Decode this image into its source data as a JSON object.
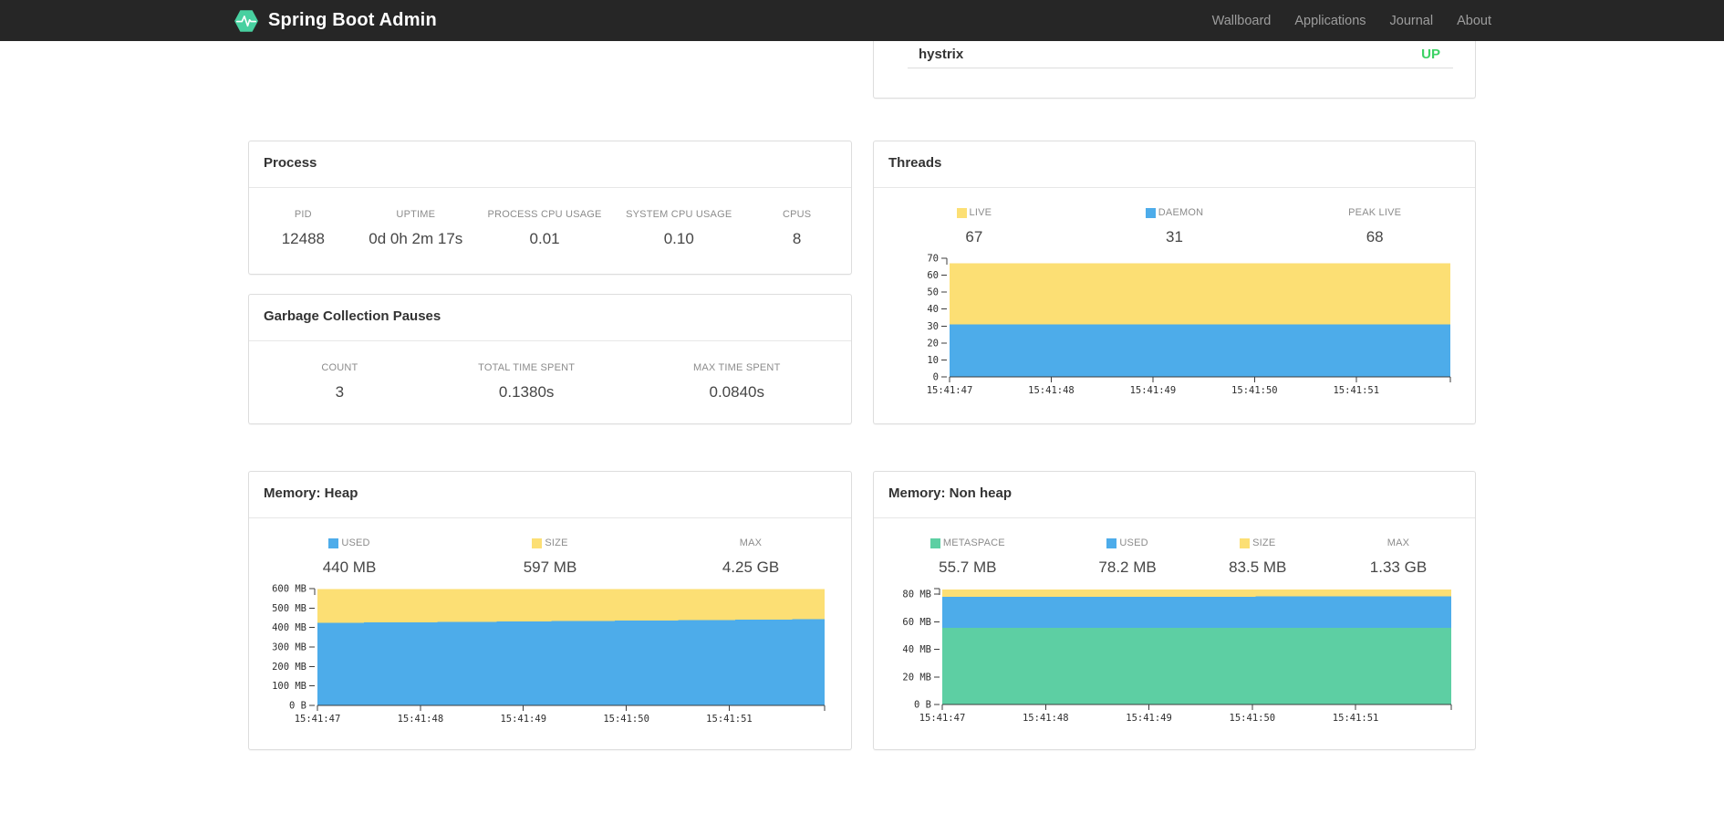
{
  "navbar": {
    "brand": "Spring Boot Admin",
    "logo_color": "#48d0a0",
    "links": [
      {
        "label": "Wallboard"
      },
      {
        "label": "Applications"
      },
      {
        "label": "Journal"
      },
      {
        "label": "About"
      }
    ]
  },
  "applications": {
    "rows": [
      {
        "name": "hystrix",
        "status": "UP",
        "status_color": "#3cd264"
      }
    ]
  },
  "process": {
    "title": "Process",
    "metrics": [
      {
        "label": "PID",
        "value": "12488"
      },
      {
        "label": "UPTIME",
        "value": "0d 0h 2m 17s"
      },
      {
        "label": "PROCESS CPU USAGE",
        "value": "0.01"
      },
      {
        "label": "SYSTEM CPU USAGE",
        "value": "0.10"
      },
      {
        "label": "CPUS",
        "value": "8"
      }
    ]
  },
  "gc": {
    "title": "Garbage Collection Pauses",
    "metrics": [
      {
        "label": "COUNT",
        "value": "3"
      },
      {
        "label": "TOTAL TIME SPENT",
        "value": "0.1380s"
      },
      {
        "label": "MAX TIME SPENT",
        "value": "0.0840s"
      }
    ]
  },
  "threads": {
    "title": "Threads",
    "metrics": [
      {
        "label": "LIVE",
        "value": "67",
        "color": "#fcdf74"
      },
      {
        "label": "DAEMON",
        "value": "31",
        "color": "#4dacea"
      },
      {
        "label": "PEAK LIVE",
        "value": "68"
      }
    ]
  },
  "heap": {
    "title": "Memory: Heap",
    "metrics": [
      {
        "label": "USED",
        "value": "440 MB",
        "color": "#4dacea"
      },
      {
        "label": "SIZE",
        "value": "597 MB",
        "color": "#fcdf74"
      },
      {
        "label": "MAX",
        "value": "4.25 GB"
      }
    ]
  },
  "nonheap": {
    "title": "Memory: Non heap",
    "metrics": [
      {
        "label": "METASPACE",
        "value": "55.7 MB",
        "color": "#5dcfa3"
      },
      {
        "label": "USED",
        "value": "78.2 MB",
        "color": "#4dacea"
      },
      {
        "label": "SIZE",
        "value": "83.5 MB",
        "color": "#fcdf74"
      },
      {
        "label": "MAX",
        "value": "1.33 GB"
      }
    ]
  },
  "chart_data": [
    {
      "id": "threads",
      "type": "area",
      "title": "Threads",
      "xlabel": "",
      "ylabel": "",
      "grid": false,
      "legend_position": "top",
      "x_labels": [
        "15:41:47",
        "15:41:48",
        "15:41:49",
        "15:41:50",
        "15:41:51"
      ],
      "xticks": [
        {
          "f": 0,
          "label": "15:41:47"
        },
        {
          "f": 0.203,
          "label": "15:41:48"
        },
        {
          "f": 0.406,
          "label": "15:41:49"
        },
        {
          "f": 0.609,
          "label": "15:41:50"
        },
        {
          "f": 0.812,
          "label": "15:41:51"
        }
      ],
      "ymax": 70,
      "yticks": [
        {
          "v": 0,
          "label": "0"
        },
        {
          "v": 10,
          "label": "10"
        },
        {
          "v": 20,
          "label": "20"
        },
        {
          "v": 30,
          "label": "30"
        },
        {
          "v": 40,
          "label": "40"
        },
        {
          "v": 50,
          "label": "50"
        },
        {
          "v": 60,
          "label": "60"
        },
        {
          "v": 70,
          "label": "70"
        }
      ],
      "bands": [
        {
          "name": "live (total)",
          "color": "#fcdf74",
          "points": [
            [
              0,
              67
            ],
            [
              1,
              67
            ]
          ]
        },
        {
          "name": "daemon",
          "color": "#4dacea",
          "points": [
            [
              0,
              31
            ],
            [
              1,
              31
            ]
          ]
        }
      ]
    },
    {
      "id": "memory-heap",
      "type": "area",
      "title": "Memory: Heap",
      "xlabel": "",
      "ylabel": "",
      "grid": false,
      "legend_position": "top",
      "x_labels": [
        "15:41:47",
        "15:41:48",
        "15:41:49",
        "15:41:50",
        "15:41:51"
      ],
      "xticks": [
        {
          "f": 0,
          "label": "15:41:47"
        },
        {
          "f": 0.203,
          "label": "15:41:48"
        },
        {
          "f": 0.406,
          "label": "15:41:49"
        },
        {
          "f": 0.609,
          "label": "15:41:50"
        },
        {
          "f": 0.812,
          "label": "15:41:51"
        }
      ],
      "ymax": 600,
      "yticks": [
        {
          "v": 0,
          "label": "0 B"
        },
        {
          "v": 100,
          "label": "100 MB"
        },
        {
          "v": 200,
          "label": "200 MB"
        },
        {
          "v": 300,
          "label": "300 MB"
        },
        {
          "v": 400,
          "label": "400 MB"
        },
        {
          "v": 500,
          "label": "500 MB"
        },
        {
          "v": 600,
          "label": "600 MB"
        }
      ],
      "bands": [
        {
          "name": "size (MB)",
          "color": "#fcdf74",
          "points": [
            [
              0,
              597
            ],
            [
              1,
              597
            ]
          ]
        },
        {
          "name": "used (MB)",
          "color": "#4dacea",
          "points": [
            [
              0,
              424
            ],
            [
              0.15,
              426
            ],
            [
              0.3,
              429
            ],
            [
              0.45,
              432
            ],
            [
              0.6,
              435
            ],
            [
              0.75,
              438
            ],
            [
              0.9,
              441
            ],
            [
              1,
              443
            ]
          ]
        }
      ]
    },
    {
      "id": "memory-nonheap",
      "type": "area",
      "title": "Memory: Non heap",
      "xlabel": "",
      "ylabel": "",
      "grid": false,
      "legend_position": "top",
      "x_labels": [
        "15:41:47",
        "15:41:48",
        "15:41:49",
        "15:41:50",
        "15:41:51"
      ],
      "xticks": [
        {
          "f": 0,
          "label": "15:41:47"
        },
        {
          "f": 0.203,
          "label": "15:41:48"
        },
        {
          "f": 0.406,
          "label": "15:41:49"
        },
        {
          "f": 0.609,
          "label": "15:41:50"
        },
        {
          "f": 0.812,
          "label": "15:41:51"
        }
      ],
      "ymax": 84,
      "yticks": [
        {
          "v": 0,
          "label": "0 B"
        },
        {
          "v": 20,
          "label": "20 MB"
        },
        {
          "v": 40,
          "label": "40 MB"
        },
        {
          "v": 60,
          "label": "60 MB"
        },
        {
          "v": 80,
          "label": "80 MB"
        }
      ],
      "bands": [
        {
          "name": "size (MB)",
          "color": "#fcdf74",
          "points": [
            [
              0,
              83.3
            ],
            [
              0.45,
              83.5
            ],
            [
              1,
              83.5
            ]
          ]
        },
        {
          "name": "used (MB)",
          "color": "#4dacea",
          "points": [
            [
              0,
              78
            ],
            [
              0.5,
              78.2
            ],
            [
              1,
              78.3
            ]
          ]
        },
        {
          "name": "metaspace (MB)",
          "color": "#5dcfa3",
          "points": [
            [
              0,
              55.7
            ],
            [
              1,
              55.7
            ]
          ]
        }
      ]
    }
  ]
}
